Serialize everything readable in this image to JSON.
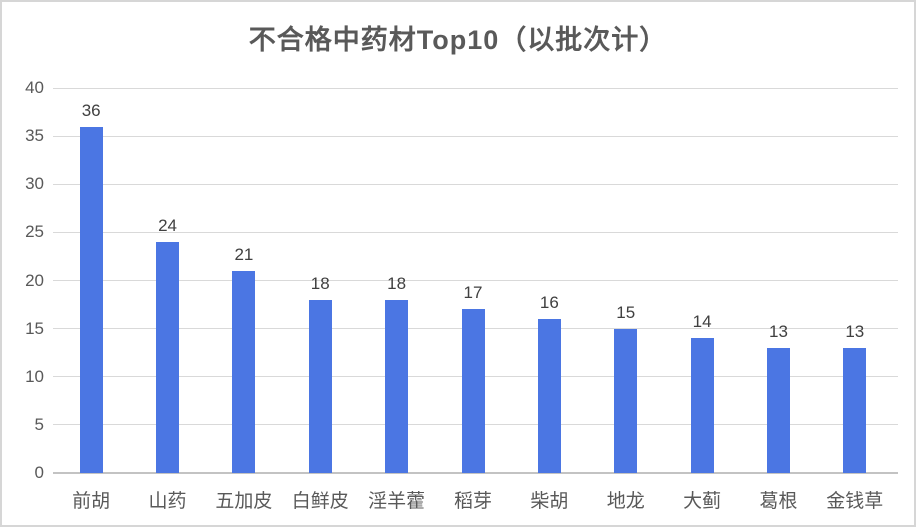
{
  "page": {
    "background": "#ffffff",
    "border_color": "#d6d6d6"
  },
  "chart_data": {
    "type": "bar",
    "title": "不合格中药材Top10（以批次计）",
    "categories": [
      "前胡",
      "山药",
      "五加皮",
      "白鲜皮",
      "淫羊藿",
      "稻芽",
      "柴胡",
      "地龙",
      "大蓟",
      "葛根",
      "金钱草"
    ],
    "values": [
      36,
      24,
      21,
      18,
      18,
      17,
      16,
      15,
      14,
      13,
      13
    ],
    "data_labels": [
      36,
      24,
      21,
      18,
      18,
      17,
      16,
      15,
      14,
      13,
      13
    ],
    "xlabel": "",
    "ylabel": "",
    "ylim": [
      0,
      40
    ],
    "yticks": [
      0,
      5,
      10,
      15,
      20,
      25,
      30,
      35,
      40
    ],
    "grid": "horizontal-on",
    "legend": "none",
    "bar_color": "#4B76E3",
    "grid_color": "#d9d9d9",
    "axis_line_color": "#c3c3c3",
    "title_color": "#595959",
    "tick_label_color": "#595959",
    "value_label_color": "#404040"
  }
}
